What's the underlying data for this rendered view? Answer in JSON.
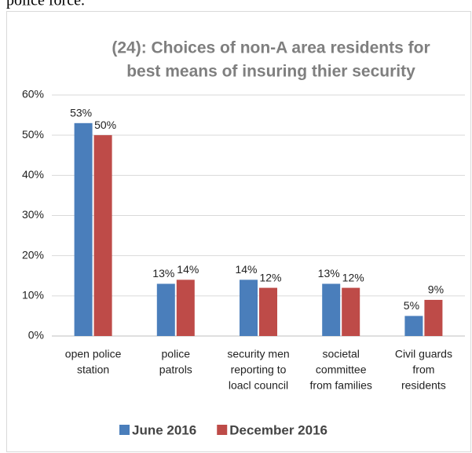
{
  "page_text": "police force.",
  "chart_data": {
    "type": "bar",
    "title": [
      "(24): Choices of non-A area residents for",
      "best means of insuring thier security"
    ],
    "categories": [
      [
        "open police",
        "station"
      ],
      [
        "police",
        "patrols"
      ],
      [
        "security men",
        "reporting to",
        "loacl council"
      ],
      [
        "societal",
        "committee",
        "from families"
      ],
      [
        "Civil guards",
        "from",
        "residents"
      ]
    ],
    "series": [
      {
        "name": "June 2016",
        "color": "#4a7ebb",
        "values": [
          53,
          13,
          14,
          13,
          5
        ],
        "value_labels": [
          "53%",
          "13%",
          "14%",
          "13%",
          "5%"
        ]
      },
      {
        "name": "December 2016",
        "color": "#be4b48",
        "values": [
          50,
          14,
          12,
          12,
          9
        ],
        "value_labels": [
          "50%",
          "14%",
          "12%",
          "12%",
          "9%"
        ]
      }
    ],
    "ylim": [
      0,
      60
    ],
    "yticks": [
      {
        "value": 0,
        "label": "0%"
      },
      {
        "value": 10,
        "label": "10%"
      },
      {
        "value": 20,
        "label": "20%"
      },
      {
        "value": 30,
        "label": "30%"
      },
      {
        "value": 40,
        "label": "40%"
      },
      {
        "value": 50,
        "label": "50%"
      },
      {
        "value": 60,
        "label": "60%"
      }
    ],
    "grid": true,
    "legend": "bottom"
  }
}
